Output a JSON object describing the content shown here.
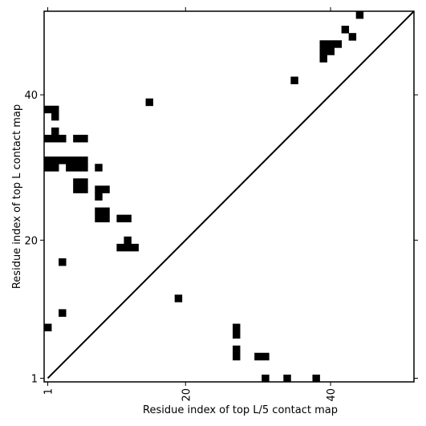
{
  "chart_data": {
    "type": "scatter",
    "xlabel": "Residue index of top L/5 contact map",
    "ylabel": "Residue index of top L contact map",
    "xlim": [
      0.5,
      51.5
    ],
    "ylim": [
      0.5,
      51.5
    ],
    "xticks": [
      1,
      20,
      40
    ],
    "yticks": [
      1,
      20,
      40
    ],
    "diagonal": true,
    "grid": false,
    "cell_color": "#000000",
    "upper_contacts": [
      [
        42,
        49
      ],
      [
        44,
        51
      ],
      [
        39,
        47
      ],
      [
        40,
        47
      ],
      [
        39,
        46
      ],
      [
        40,
        46
      ],
      [
        39,
        45
      ],
      [
        41,
        47
      ],
      [
        43,
        48
      ],
      [
        35,
        42
      ],
      [
        15,
        39
      ],
      [
        1,
        38
      ],
      [
        2,
        38
      ],
      [
        2,
        37
      ],
      [
        2,
        35
      ],
      [
        1,
        34
      ],
      [
        2,
        34
      ],
      [
        3,
        34
      ],
      [
        5,
        34
      ],
      [
        6,
        34
      ],
      [
        1,
        31
      ],
      [
        2,
        31
      ],
      [
        3,
        31
      ],
      [
        4,
        31
      ],
      [
        5,
        31
      ],
      [
        6,
        31
      ],
      [
        1,
        30
      ],
      [
        2,
        30
      ],
      [
        4,
        30
      ],
      [
        5,
        30
      ],
      [
        6,
        30
      ],
      [
        8,
        30
      ],
      [
        5,
        28
      ],
      [
        6,
        28
      ],
      [
        5,
        27
      ],
      [
        6,
        27
      ],
      [
        8,
        27
      ],
      [
        9,
        27
      ],
      [
        8,
        26
      ],
      [
        8,
        24
      ],
      [
        9,
        24
      ],
      [
        8,
        23
      ],
      [
        9,
        23
      ],
      [
        11,
        23
      ],
      [
        12,
        23
      ],
      [
        12,
        20
      ],
      [
        11,
        19
      ],
      [
        12,
        19
      ],
      [
        13,
        19
      ],
      [
        3,
        17
      ],
      [
        3,
        10
      ]
    ],
    "lower_contacts": [
      [
        19,
        12
      ],
      [
        27,
        8
      ],
      [
        27,
        7
      ],
      [
        27,
        5
      ],
      [
        27,
        4
      ],
      [
        30,
        4
      ],
      [
        31,
        4
      ],
      [
        1,
        8
      ],
      [
        31,
        1
      ],
      [
        34,
        1
      ],
      [
        38,
        1
      ]
    ]
  }
}
